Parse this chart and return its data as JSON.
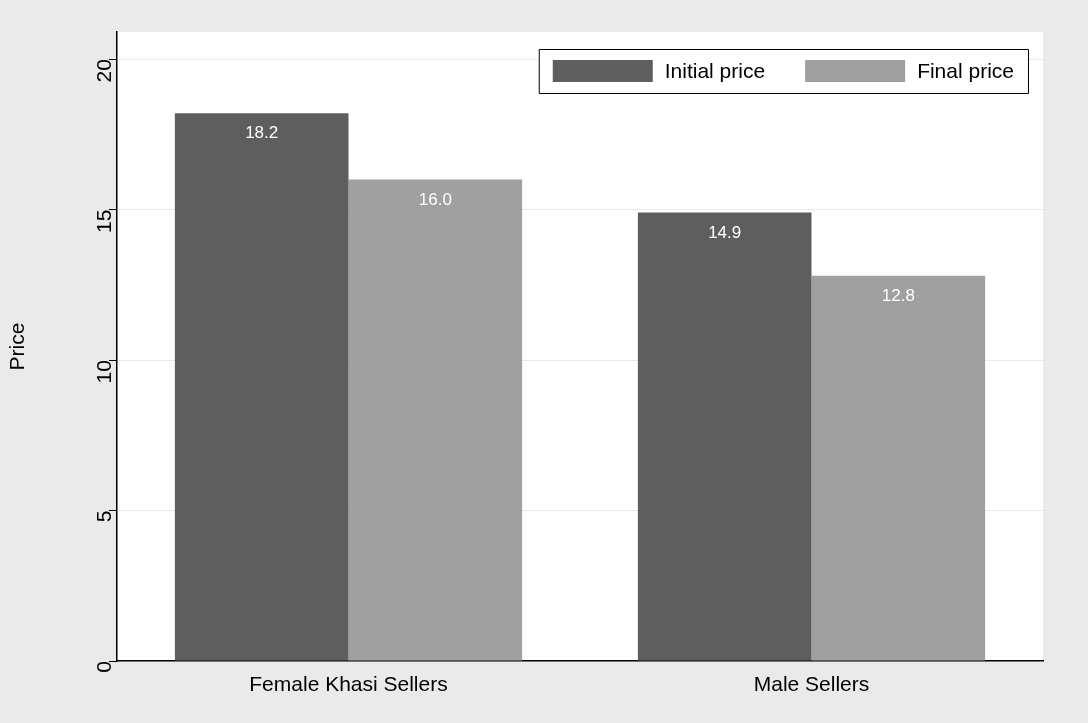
{
  "chart_data": {
    "type": "bar",
    "ylabel": "Price",
    "categories": [
      "Female Khasi Sellers",
      "Male Sellers"
    ],
    "series": [
      {
        "name": "Initial price",
        "color": "#5e5e5e",
        "values": [
          18.2,
          14.9
        ],
        "value_labels": [
          "18.2",
          "14.9"
        ]
      },
      {
        "name": "Final price",
        "color": "#a0a0a0",
        "values": [
          16.0,
          12.8
        ],
        "value_labels": [
          "16.0",
          "12.8"
        ]
      }
    ],
    "ylim": [
      0,
      20.9
    ],
    "yticks": [
      0,
      5,
      10,
      15,
      20
    ],
    "grid": "y",
    "legend": "top right"
  }
}
